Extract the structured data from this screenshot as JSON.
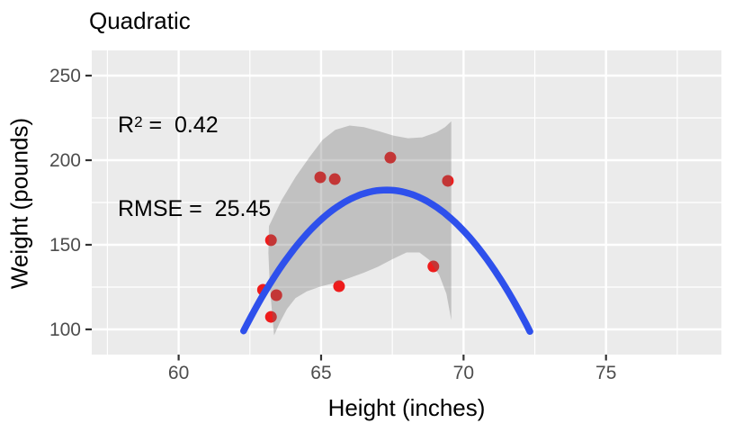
{
  "title": "Quadratic",
  "annotation": {
    "r2_base": "R",
    "r2_sup": "2",
    "r2_rest": " =  0.42",
    "rmse_line": "RMSE =  25.45"
  },
  "chart_data": {
    "type": "scatter",
    "title": "Quadratic",
    "xlabel": "Height (inches)",
    "ylabel": "Weight (pounds)",
    "x_domain": [
      56.95,
      79.05
    ],
    "y_domain": [
      85.1,
      264.9
    ],
    "x_ticks": [
      60,
      65,
      70,
      75
    ],
    "x_minor_ticks": [
      57.5,
      62.5,
      67.5,
      72.5,
      77.5
    ],
    "y_ticks": [
      100,
      150,
      200,
      250
    ],
    "y_minor_ticks": [
      125,
      175,
      225
    ],
    "grid": true,
    "legend_position": "none",
    "points": [
      [
        62.96,
        123.4
      ],
      [
        63.24,
        152.7
      ],
      [
        63.24,
        107.4
      ],
      [
        63.43,
        120.2
      ],
      [
        64.97,
        189.9
      ],
      [
        65.48,
        188.8
      ],
      [
        65.63,
        125.5
      ],
      [
        67.43,
        201.5
      ],
      [
        68.94,
        137.2
      ],
      [
        69.45,
        187.8
      ]
    ],
    "smooth_line": {
      "fit": "quadratic",
      "vertex_x": 67.3,
      "vertex_y": 182.4,
      "a": -3.305,
      "x_range": [
        62.28,
        72.33
      ]
    },
    "confidence_band": {
      "polygon": [
        [
          63.17,
          161
        ],
        [
          63.6,
          176
        ],
        [
          64.1,
          190
        ],
        [
          64.6,
          202
        ],
        [
          65.05,
          212
        ],
        [
          65.5,
          218
        ],
        [
          66.0,
          220.5
        ],
        [
          66.5,
          219.5
        ],
        [
          67.05,
          217
        ],
        [
          67.55,
          214.5
        ],
        [
          68.05,
          213
        ],
        [
          68.55,
          213.5
        ],
        [
          69.05,
          216.5
        ],
        [
          69.35,
          219.5
        ],
        [
          69.57,
          223
        ],
        [
          69.57,
          105.5
        ],
        [
          69.4,
          121
        ],
        [
          69.15,
          132
        ],
        [
          68.8,
          141
        ],
        [
          68.45,
          145.5
        ],
        [
          68.0,
          145.5
        ],
        [
          67.5,
          141.5
        ],
        [
          67.0,
          137
        ],
        [
          66.5,
          133.5
        ],
        [
          66.0,
          130.5
        ],
        [
          65.5,
          127.5
        ],
        [
          65.0,
          125.5
        ],
        [
          64.5,
          122.5
        ],
        [
          64.1,
          118.5
        ],
        [
          63.8,
          112
        ],
        [
          63.55,
          104
        ],
        [
          63.35,
          96.5
        ],
        [
          63.2,
          125
        ],
        [
          63.15,
          145
        ]
      ]
    },
    "stats": {
      "r_squared": 0.42,
      "rmse": 25.45
    },
    "colors": {
      "point": "#EE1C1C",
      "line": "#2E50EC",
      "band": "rgba(110,110,110,0.33)",
      "panel": "#EBEBEB",
      "grid": "#FFFFFF",
      "tick_mark": "#333333",
      "tick_label": "#4D4D4D",
      "text": "#000000"
    }
  }
}
